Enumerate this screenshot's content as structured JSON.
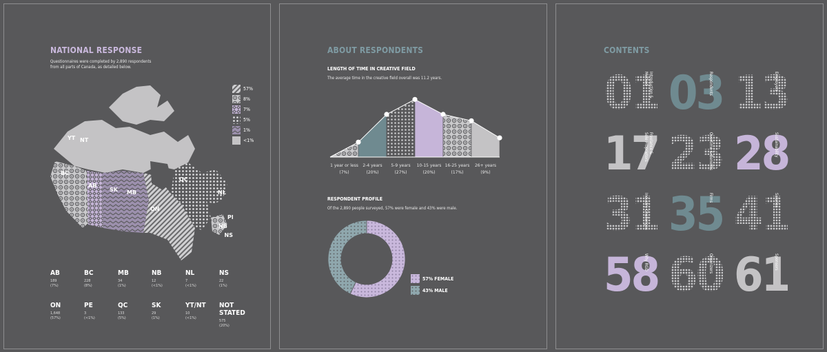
{
  "national": {
    "title": "NATIONAL RESPONSE",
    "desc_line1": "Questionnaires were completed by 2,890 respondents",
    "desc_line2": "from all parts of Canada, as detailed below.",
    "legend": [
      "57%",
      "8%",
      "7%",
      "5%",
      "1%",
      "<1%"
    ],
    "map_labels": [
      "YT",
      "NT",
      "BC",
      "AB",
      "SK",
      "MB",
      "ON",
      "QC",
      "NL",
      "PE",
      "NB",
      "NS"
    ],
    "provinces": [
      {
        "code": "AB",
        "count": "189",
        "pct": "(7%)"
      },
      {
        "code": "BC",
        "count": "228",
        "pct": "(8%)"
      },
      {
        "code": "MB",
        "count": "34",
        "pct": "(1%)"
      },
      {
        "code": "NB",
        "count": "12",
        "pct": "(<1%)"
      },
      {
        "code": "NL",
        "count": "7",
        "pct": "(<1%)"
      },
      {
        "code": "NS",
        "count": "22",
        "pct": "(1%)"
      },
      {
        "code": "ON",
        "count": "1,648",
        "pct": "(57%)"
      },
      {
        "code": "PE",
        "count": "3",
        "pct": "(<1%)"
      },
      {
        "code": "QC",
        "count": "133",
        "pct": "(5%)"
      },
      {
        "code": "SK",
        "count": "29",
        "pct": "(1%)"
      },
      {
        "code": "YT/NT",
        "count": "10",
        "pct": "(<1%)"
      },
      {
        "code": "NOT STATED",
        "count": "575",
        "pct": "(20%)"
      }
    ]
  },
  "about": {
    "title": "ABOUT RESPONDENTS",
    "field_heading": "LENGTH OF TIME IN CREATIVE FIELD",
    "field_desc": "The average time in the creative field overall was 11.2 years.",
    "profile_heading": "RESPONDENT PROFILE",
    "profile_desc": "Of the 2,890 people surveyed, 57% were female and 43% were male.",
    "female_label": "57% FEMALE",
    "male_label": "43% MALE"
  },
  "chart_data": [
    {
      "type": "area",
      "title": "LENGTH OF TIME IN CREATIVE FIELD",
      "categories": [
        "1 year or less",
        "2-4 years",
        "5-9 years",
        "10-15 years",
        "16-25 years",
        "26+ years"
      ],
      "values": [
        7,
        20,
        27,
        20,
        17,
        9
      ],
      "value_labels": [
        "(7%)",
        "(20%)",
        "(27%)",
        "(20%)",
        "(17%)",
        "(9%)"
      ]
    },
    {
      "type": "pie",
      "title": "RESPONDENT PROFILE",
      "categories": [
        "57% FEMALE",
        "43% MALE"
      ],
      "values": [
        57,
        43
      ]
    }
  ],
  "contents": {
    "title": "CONTENTS",
    "items": [
      {
        "num": "01",
        "label": "Introduction &\nMethod"
      },
      {
        "num": "03",
        "label": "Respondents"
      },
      {
        "num": "13",
        "label": "Employers"
      },
      {
        "num": "17",
        "label": "Freelance &\nSole Proprietors"
      },
      {
        "num": "23",
        "label": "Overtime & Benefits"
      },
      {
        "num": "28",
        "label": "Sustainability"
      },
      {
        "num": "31",
        "label": "Industry Challenges"
      },
      {
        "num": "35",
        "label": "Firms"
      },
      {
        "num": "41",
        "label": "Salaries"
      },
      {
        "num": "58",
        "label": "Why RGD"
      },
      {
        "num": "60",
        "label": "Organizers"
      },
      {
        "num": "61",
        "label": "Sponsors"
      }
    ]
  },
  "colors": {
    "background": "#58585a",
    "lavender": "#c6b5d9",
    "teal": "#6f8a90",
    "light_gray": "#c4c3c5",
    "title_lavender": "#c9b8dc",
    "title_teal": "#7f9ba3"
  }
}
